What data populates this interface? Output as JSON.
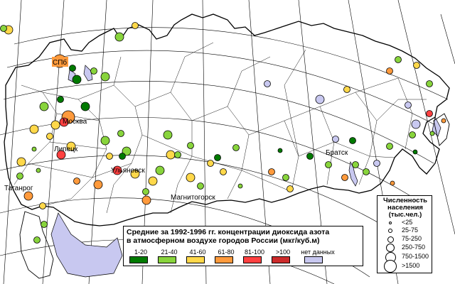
{
  "legend": {
    "title": "Средние за 1992-1996 гг. концентрации диоксида азота\nв атмосферном воздухе городов России (мкг/куб.м)",
    "bins": [
      {
        "label": "1-20",
        "color": "#007a00"
      },
      {
        "label": "21-40",
        "color": "#88d43c"
      },
      {
        "label": "41-60",
        "color": "#ffd84a"
      },
      {
        "label": "61-80",
        "color": "#ff9a3c"
      },
      {
        "label": "81-100",
        "color": "#ff4040"
      },
      {
        "label": ">100",
        "color": "#cc2a2a"
      },
      {
        "label": "нет данных",
        "color": "#c8c8f0"
      }
    ]
  },
  "size_legend": {
    "title": "Численность\nнаселения\n(тыс.чел.)",
    "classes": [
      "<25",
      "25-75",
      "75-250",
      "250-750",
      "750-1500",
      ">1500"
    ]
  },
  "city_labels": {
    "spb": "СПб",
    "moscow": "Москва",
    "lipetsk": "Липецк",
    "ulyanovsk": "Ульяновск",
    "magnitogorsk": "Магнитогорск",
    "taganrog": "Таганрог",
    "bratsk": "Братск"
  },
  "map_colors": {
    "land": "#ffffff",
    "water": "#c8c8f0",
    "border": "#000000",
    "graticule": "#000000"
  },
  "cities": [
    {
      "cls": "41-60",
      "size": "250-750"
    },
    {
      "cls": "21-40",
      "size": "75-250"
    },
    {
      "cls": "41-60",
      "size": "75-250"
    },
    {
      "cls": "21-40",
      "size": "250-750"
    },
    {
      "cls": "61-80",
      "size": ">1500"
    },
    {
      "cls": "1-20",
      "size": "75-250"
    },
    {
      "cls": "21-40",
      "size": "75-250"
    },
    {
      "cls": "1-20",
      "size": "250-750"
    },
    {
      "cls": "21-40",
      "size": "250-750"
    },
    {
      "cls": "1-20",
      "size": "75-250"
    },
    {
      "cls": "61-80",
      "size": ">1500"
    },
    {
      "cls": "81-100",
      "size": "250-750"
    },
    {
      "cls": "21-40",
      "size": "250-750"
    },
    {
      "cls": "41-60",
      "size": "250-750"
    },
    {
      "cls": "1-20",
      "size": "250-750"
    },
    {
      "cls": "41-60",
      "size": "250-750"
    },
    {
      "cls": "81-100",
      "size": "250-750"
    },
    {
      "cls": "41-60",
      "size": "250-750"
    },
    {
      "cls": "81-100",
      "size": "250-750"
    },
    {
      "cls": "21-40",
      "size": "250-750"
    },
    {
      "cls": "21-40",
      "size": "250-750"
    },
    {
      "cls": "1-20",
      "size": "75-250"
    },
    {
      "cls": "41-60",
      "size": "250-750"
    },
    {
      "cls": "21-40",
      "size": "250-750"
    },
    {
      "cls": "41-60",
      "size": "250-750"
    },
    {
      "cls": "21-40",
      "size": "75-250"
    },
    {
      "cls": "41-60",
      "size": "250-750"
    },
    {
      "cls": "61-80",
      "size": "250-750"
    },
    {
      "cls": "41-60",
      "size": "250-750"
    },
    {
      "cls": "21-40",
      "size": "75-250"
    },
    {
      "cls": "21-40",
      "size": "75-250"
    },
    {
      "cls": "61-80",
      "size": "250-750"
    },
    {
      "cls": "41-60",
      "size": "75-250"
    },
    {
      "cls": "21-40",
      "size": "75-250"
    },
    {
      "cls": "61-80",
      "size": "75-250"
    },
    {
      "cls": "61-80",
      "size": "250-750"
    },
    {
      "cls": "41-60",
      "size": "75-250"
    },
    {
      "cls": "21-40",
      "size": "75-250"
    },
    {
      "cls": "21-40",
      "size": "250-750"
    },
    {
      "cls": "21-40",
      "size": "75-250"
    },
    {
      "cls": "41-60",
      "size": "75-250"
    },
    {
      "cls": "41-60",
      "size": "75-250"
    },
    {
      "cls": "21-40",
      "size": "75-250"
    },
    {
      "cls": "1-20",
      "size": "75-250"
    },
    {
      "cls": "21-40",
      "size": "25-75"
    },
    {
      "cls": "61-80",
      "size": "75-250"
    },
    {
      "cls": "21-40",
      "size": "75-250"
    },
    {
      "cls": "1-20",
      "size": "25-75"
    },
    {
      "cls": "41-60",
      "size": "75-250"
    },
    {
      "cls": "1-20",
      "size": "75-250"
    },
    {
      "cls": "21-40",
      "size": "75-250"
    },
    {
      "cls": "61-80",
      "size": "75-250"
    },
    {
      "cls": "21-40",
      "size": "75-250"
    },
    {
      "cls": "1-20",
      "size": "75-250"
    },
    {
      "cls": "нет данных",
      "size": "75-250"
    },
    {
      "cls": "21-40",
      "size": "75-250"
    },
    {
      "cls": "нет данных",
      "size": "75-250"
    },
    {
      "cls": "21-40",
      "size": "75-250"
    },
    {
      "cls": "21-40",
      "size": "75-250"
    },
    {
      "cls": "нет данных",
      "size": "250-750"
    },
    {
      "cls": "21-40",
      "size": "25-75"
    },
    {
      "cls": "61-80",
      "size": "25-75"
    },
    {
      "cls": "1-20",
      "size": "25-75"
    },
    {
      "cls": "61-80",
      "size": "25-75"
    },
    {
      "cls": "нет данных",
      "size": "75-250"
    },
    {
      "cls": "61-80",
      "size": "75-250"
    },
    {
      "cls": "81-100",
      "size": "75-250"
    },
    {
      "cls": "нет данных",
      "size": "75-250"
    },
    {
      "cls": "нет данных",
      "size": "250-750"
    },
    {
      "cls": "41-60",
      "size": "75-250"
    },
    {
      "cls": "21-40",
      "size": "75-250"
    },
    {
      "cls": "41-60",
      "size": "75-250"
    },
    {
      "cls": "21-40",
      "size": "75-250"
    },
    {
      "cls": "21-40",
      "size": "25-75"
    },
    {
      "cls": "41-60",
      "size": "75-250"
    },
    {
      "cls": "41-60",
      "size": "250-750"
    },
    {
      "cls": "21-40",
      "size": "25-75"
    },
    {
      "cls": "21-40",
      "size": "75-250"
    },
    {
      "cls": "21-40",
      "size": "75-250"
    }
  ]
}
